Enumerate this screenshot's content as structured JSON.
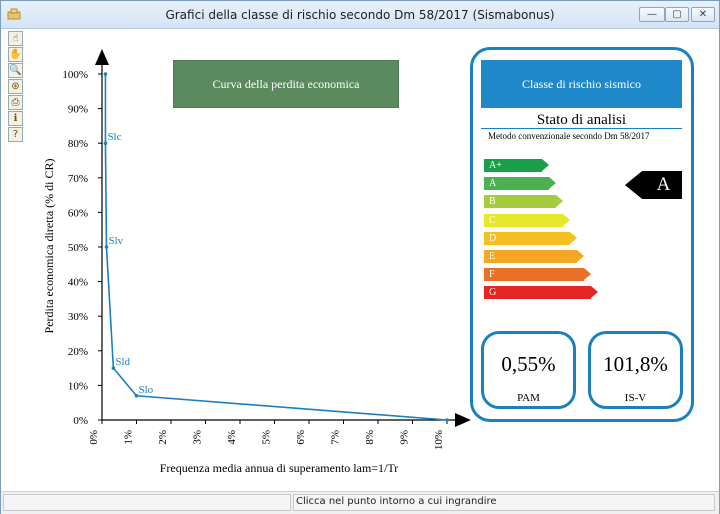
{
  "window": {
    "title": "Grafici della classe di rischio secondo Dm 58/2017 (Sismabonus)",
    "min_label": "—",
    "max_label": "▢",
    "close_label": "✕"
  },
  "toolbar": {
    "tools": [
      {
        "name": "hand-pointer-tool-icon",
        "glyph": "☝"
      },
      {
        "name": "hand-pan-tool-icon",
        "glyph": "✋"
      },
      {
        "name": "zoom-tool-icon",
        "glyph": "🔍"
      },
      {
        "name": "reset-view-tool-icon",
        "glyph": "⊛"
      },
      {
        "name": "print-tool-icon",
        "glyph": "⎙"
      },
      {
        "name": "info-tool-icon",
        "glyph": "ℹ"
      },
      {
        "name": "help-tool-icon",
        "glyph": "?"
      }
    ]
  },
  "buttons": {
    "curve": "Curva della perdita economica",
    "class": "Classe di rischio sismico"
  },
  "panel": {
    "heading": "Stato di analisi",
    "method": "Metodo convenzionale secondo Dm 58/2017",
    "classes": [
      {
        "label": "A+",
        "color": "#1a9e4a"
      },
      {
        "label": "A",
        "color": "#4caf50"
      },
      {
        "label": "B",
        "color": "#a4cc3c"
      },
      {
        "label": "C",
        "color": "#e8e82a"
      },
      {
        "label": "D",
        "color": "#f5c022"
      },
      {
        "label": "E",
        "color": "#f5a623"
      },
      {
        "label": "F",
        "color": "#ea6f27"
      },
      {
        "label": "G",
        "color": "#e32624"
      }
    ],
    "rating": "A",
    "pam_value": "0,55%",
    "pam_label": "PAM",
    "isv_value": "101,8%",
    "isv_label": "IS-V"
  },
  "status": {
    "text": "Clicca nel punto intorno a cui ingrandire"
  },
  "chart_data": {
    "type": "line",
    "xlabel": "Frequenza media annua di superamento lam=1/Tr",
    "ylabel": "Perdita economica diretta (% di CR)",
    "xlim": [
      0,
      10
    ],
    "ylim": [
      0,
      100
    ],
    "x_ticks": [
      "0%",
      "1%",
      "2%",
      "3%",
      "4%",
      "5%",
      "6%",
      "7%",
      "8%",
      "9%",
      "10%"
    ],
    "y_ticks": [
      "0%",
      "10%",
      "20%",
      "30%",
      "40%",
      "50%",
      "60%",
      "70%",
      "80%",
      "90%",
      "100%"
    ],
    "points": [
      {
        "x": 0.1,
        "y": 100,
        "label": ""
      },
      {
        "x": 0.1,
        "y": 80,
        "label": "Slc"
      },
      {
        "x": 0.13,
        "y": 50,
        "label": "Slv"
      },
      {
        "x": 0.33,
        "y": 15,
        "label": "Sld"
      },
      {
        "x": 1.0,
        "y": 7,
        "label": "Slo"
      },
      {
        "x": 10.0,
        "y": 0,
        "label": ""
      }
    ],
    "line_color": "#1a80c0"
  }
}
